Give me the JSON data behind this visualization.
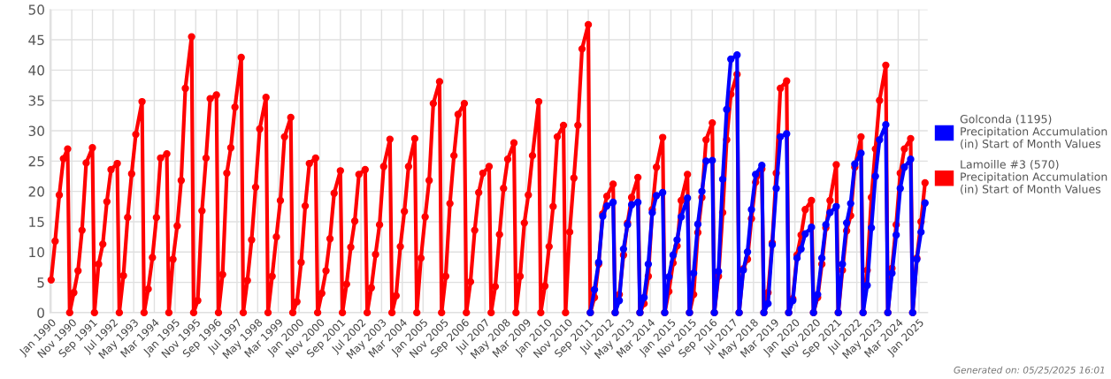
{
  "chart_data": {
    "type": "line",
    "xlim": [
      "1989-12-15",
      "2025-05-10"
    ],
    "xticks": [
      {
        "value": "1990-01",
        "label": "Jan 1990"
      },
      {
        "value": "1990-11",
        "label": "Nov 1990"
      },
      {
        "value": "1991-09",
        "label": "Sep 1991"
      },
      {
        "value": "1992-07",
        "label": "Jul 1992"
      },
      {
        "value": "1993-05",
        "label": "May 1993"
      },
      {
        "value": "1994-03",
        "label": "Mar 1994"
      },
      {
        "value": "1995-01",
        "label": "Jan 1995"
      },
      {
        "value": "1995-11",
        "label": "Nov 1995"
      },
      {
        "value": "1996-09",
        "label": "Sep 1996"
      },
      {
        "value": "1997-07",
        "label": "Jul 1997"
      },
      {
        "value": "1998-05",
        "label": "May 1998"
      },
      {
        "value": "1999-03",
        "label": "Mar 1999"
      },
      {
        "value": "2000-01",
        "label": "Jan 2000"
      },
      {
        "value": "2000-11",
        "label": "Nov 2000"
      },
      {
        "value": "2001-09",
        "label": "Sep 2001"
      },
      {
        "value": "2002-07",
        "label": "Jul 2002"
      },
      {
        "value": "2003-05",
        "label": "May 2003"
      },
      {
        "value": "2004-03",
        "label": "Mar 2004"
      },
      {
        "value": "2005-01",
        "label": "Jan 2005"
      },
      {
        "value": "2005-11",
        "label": "Nov 2005"
      },
      {
        "value": "2006-09",
        "label": "Sep 2006"
      },
      {
        "value": "2007-07",
        "label": "Jul 2007"
      },
      {
        "value": "2008-05",
        "label": "May 2008"
      },
      {
        "value": "2009-03",
        "label": "Mar 2009"
      },
      {
        "value": "2010-01",
        "label": "Jan 2010"
      },
      {
        "value": "2010-11",
        "label": "Nov 2010"
      },
      {
        "value": "2011-09",
        "label": "Sep 2011"
      },
      {
        "value": "2012-07",
        "label": "Jul 2012"
      },
      {
        "value": "2013-05",
        "label": "May 2013"
      },
      {
        "value": "2014-03",
        "label": "Mar 2014"
      },
      {
        "value": "2015-01",
        "label": "Jan 2015"
      },
      {
        "value": "2015-11",
        "label": "Nov 2015"
      },
      {
        "value": "2016-09",
        "label": "Sep 2016"
      },
      {
        "value": "2017-07",
        "label": "Jul 2017"
      },
      {
        "value": "2018-05",
        "label": "May 2018"
      },
      {
        "value": "2019-03",
        "label": "Mar 2019"
      },
      {
        "value": "2020-01",
        "label": "Jan 2020"
      },
      {
        "value": "2020-11",
        "label": "Nov 2020"
      },
      {
        "value": "2021-09",
        "label": "Sep 2021"
      },
      {
        "value": "2022-07",
        "label": "Jul 2022"
      },
      {
        "value": "2023-05",
        "label": "May 2023"
      },
      {
        "value": "2024-03",
        "label": "Mar 2024"
      },
      {
        "value": "2025-01",
        "label": "Jan 2025"
      }
    ],
    "ylim": [
      0,
      50
    ],
    "yticks": [
      0,
      5,
      10,
      15,
      20,
      25,
      30,
      35,
      40,
      45,
      50
    ],
    "grid": true,
    "legend": "right",
    "marker": "circle",
    "line_style": "solid",
    "annotations": [
      "Generated on: 05/25/2025 16:01"
    ],
    "series": [
      {
        "name": "Golconda (1195)\nPrecipitation Accumulation\n(in) Start of Month Values",
        "color": "#0000ff",
        "x": [
          "2011-10",
          "2011-12",
          "2012-02",
          "2012-04",
          "2012-06",
          "2012-09",
          "2012-10",
          "2012-12",
          "2013-02",
          "2013-04",
          "2013-06",
          "2013-09",
          "2013-10",
          "2013-12",
          "2014-02",
          "2014-04",
          "2014-06",
          "2014-09",
          "2014-10",
          "2014-12",
          "2015-02",
          "2015-04",
          "2015-06",
          "2015-09",
          "2015-10",
          "2015-12",
          "2016-02",
          "2016-04",
          "2016-06",
          "2016-09",
          "2016-10",
          "2016-12",
          "2017-02",
          "2017-04",
          "2017-06",
          "2017-09",
          "2017-10",
          "2017-12",
          "2018-02",
          "2018-04",
          "2018-06",
          "2018-09",
          "2018-10",
          "2018-12",
          "2019-02",
          "2019-04",
          "2019-06",
          "2019-09",
          "2019-10",
          "2019-12",
          "2020-02",
          "2020-04",
          "2020-06",
          "2020-09",
          "2020-10",
          "2020-12",
          "2021-02",
          "2021-04",
          "2021-06",
          "2021-09",
          "2021-10",
          "2021-12",
          "2022-02",
          "2022-04",
          "2022-06",
          "2022-09",
          "2022-10",
          "2022-12",
          "2023-02",
          "2023-04",
          "2023-06",
          "2023-09",
          "2023-10",
          "2023-12",
          "2024-02",
          "2024-04",
          "2024-06",
          "2024-09",
          "2024-10",
          "2024-12",
          "2025-02",
          "2025-04"
        ],
        "values": [
          0,
          3.8,
          8.3,
          15.9,
          17.6,
          18.2,
          0,
          2.0,
          10.5,
          14.5,
          17.8,
          18.2,
          0,
          2.5,
          8.0,
          16.5,
          19.3,
          19.8,
          0,
          5.9,
          9.5,
          12.0,
          15.8,
          18.9,
          0,
          6.5,
          14.6,
          20.0,
          25.0,
          25.1,
          0,
          6.8,
          22.0,
          33.5,
          41.8,
          42.5,
          0,
          7.0,
          10.0,
          17.0,
          22.8,
          24.3,
          0,
          1.5,
          11.2,
          20.5,
          29.0,
          29.5,
          0,
          2.0,
          9.0,
          10.5,
          13.0,
          14.1,
          0,
          3.0,
          9.0,
          14.5,
          16.5,
          17.5,
          0,
          8.0,
          14.8,
          18.0,
          24.5,
          26.3,
          0,
          4.5,
          14.0,
          22.5,
          28.5,
          31.0,
          0,
          6.5,
          12.8,
          20.5,
          24.0,
          25.3,
          0,
          8.8,
          13.3,
          18.1
        ]
      },
      {
        "name": "Lamoille #3 (570)\nPrecipitation Accumulation\n(in) Start of Month Values",
        "color": "#ff0000",
        "x": [
          "1990-01",
          "1990-03",
          "1990-05",
          "1990-07",
          "1990-09",
          "1990-10",
          "1990-12",
          "1991-02",
          "1991-04",
          "1991-06",
          "1991-09",
          "1991-10",
          "1991-12",
          "1992-02",
          "1992-04",
          "1992-06",
          "1992-09",
          "1992-10",
          "1992-12",
          "1993-02",
          "1993-04",
          "1993-06",
          "1993-09",
          "1993-10",
          "1993-12",
          "1994-02",
          "1994-04",
          "1994-06",
          "1994-09",
          "1994-10",
          "1994-12",
          "1995-02",
          "1995-04",
          "1995-06",
          "1995-09",
          "1995-10",
          "1995-12",
          "1996-02",
          "1996-04",
          "1996-06",
          "1996-09",
          "1996-10",
          "1996-12",
          "1997-02",
          "1997-04",
          "1997-06",
          "1997-09",
          "1997-10",
          "1997-12",
          "1998-02",
          "1998-04",
          "1998-06",
          "1998-09",
          "1998-10",
          "1998-12",
          "1999-02",
          "1999-04",
          "1999-06",
          "1999-09",
          "1999-10",
          "1999-12",
          "2000-02",
          "2000-04",
          "2000-06",
          "2000-09",
          "2000-10",
          "2000-12",
          "2001-02",
          "2001-04",
          "2001-06",
          "2001-09",
          "2001-10",
          "2001-12",
          "2002-02",
          "2002-04",
          "2002-06",
          "2002-09",
          "2002-10",
          "2002-12",
          "2003-02",
          "2003-04",
          "2003-06",
          "2003-09",
          "2003-10",
          "2003-12",
          "2004-02",
          "2004-04",
          "2004-06",
          "2004-09",
          "2004-10",
          "2004-12",
          "2005-02",
          "2005-04",
          "2005-06",
          "2005-09",
          "2005-10",
          "2005-12",
          "2006-02",
          "2006-04",
          "2006-06",
          "2006-09",
          "2006-10",
          "2006-12",
          "2007-02",
          "2007-04",
          "2007-06",
          "2007-09",
          "2007-10",
          "2007-12",
          "2008-02",
          "2008-04",
          "2008-06",
          "2008-09",
          "2008-10",
          "2008-12",
          "2009-02",
          "2009-04",
          "2009-06",
          "2009-09",
          "2009-10",
          "2009-12",
          "2010-02",
          "2010-04",
          "2010-06",
          "2010-09",
          "2010-10",
          "2010-12",
          "2011-02",
          "2011-04",
          "2011-06",
          "2011-09",
          "2011-10",
          "2011-12",
          "2012-02",
          "2012-04",
          "2012-06",
          "2012-09",
          "2012-10",
          "2012-12",
          "2013-02",
          "2013-04",
          "2013-06",
          "2013-09",
          "2013-10",
          "2013-12",
          "2014-02",
          "2014-04",
          "2014-06",
          "2014-09",
          "2014-10",
          "2014-12",
          "2015-02",
          "2015-04",
          "2015-06",
          "2015-09",
          "2015-10",
          "2015-12",
          "2016-02",
          "2016-04",
          "2016-06",
          "2016-09",
          "2016-10",
          "2016-12",
          "2017-02",
          "2017-04",
          "2017-06",
          "2017-09",
          "2017-10",
          "2017-12",
          "2018-02",
          "2018-04",
          "2018-06",
          "2018-09",
          "2018-10",
          "2018-12",
          "2019-02",
          "2019-04",
          "2019-06",
          "2019-09",
          "2019-10",
          "2019-12",
          "2020-02",
          "2020-04",
          "2020-06",
          "2020-09",
          "2020-10",
          "2020-12",
          "2021-02",
          "2021-04",
          "2021-06",
          "2021-09",
          "2021-10",
          "2021-12",
          "2022-02",
          "2022-04",
          "2022-06",
          "2022-09",
          "2022-10",
          "2022-12",
          "2023-02",
          "2023-04",
          "2023-06",
          "2023-09",
          "2023-10",
          "2023-12",
          "2024-02",
          "2024-04",
          "2024-06",
          "2024-09",
          "2024-10",
          "2024-12",
          "2025-02",
          "2025-04"
        ],
        "values": [
          5.4,
          11.8,
          19.4,
          25.4,
          27.0,
          0,
          3.3,
          6.9,
          13.6,
          24.7,
          27.2,
          0,
          8.0,
          11.3,
          18.3,
          23.6,
          24.6,
          0,
          6.1,
          15.7,
          22.9,
          29.4,
          34.8,
          0,
          3.9,
          9.1,
          15.7,
          25.5,
          26.2,
          0,
          8.8,
          14.3,
          21.8,
          37.0,
          45.5,
          0,
          2.0,
          16.8,
          25.5,
          35.3,
          35.9,
          0,
          6.3,
          23.0,
          27.2,
          33.9,
          42.1,
          0,
          5.3,
          12.0,
          20.7,
          30.3,
          35.5,
          0,
          6.0,
          12.5,
          18.5,
          29.0,
          32.2,
          0,
          1.8,
          8.3,
          17.6,
          24.6,
          25.5,
          0,
          3.2,
          6.9,
          12.2,
          19.7,
          23.4,
          0,
          4.7,
          10.8,
          15.1,
          22.8,
          23.6,
          0,
          4.1,
          9.6,
          14.5,
          24.1,
          28.6,
          0,
          2.8,
          10.9,
          16.7,
          24.1,
          28.7,
          0,
          9.0,
          15.8,
          21.8,
          34.5,
          38.1,
          0,
          6.0,
          18.0,
          25.9,
          32.7,
          34.5,
          0,
          5.1,
          13.6,
          19.8,
          23.0,
          24.1,
          0,
          4.3,
          12.9,
          20.5,
          25.3,
          28.0,
          0,
          6.0,
          14.8,
          19.4,
          25.9,
          34.8,
          0,
          4.4,
          10.9,
          17.5,
          29.0,
          30.9,
          0,
          13.3,
          22.2,
          30.9,
          43.5,
          47.5,
          0,
          2.5,
          8.0,
          16.3,
          19.2,
          21.2,
          0,
          3.0,
          9.5,
          14.8,
          19.0,
          22.3,
          0,
          1.5,
          6.0,
          17.0,
          24.0,
          28.9,
          0,
          3.5,
          8.2,
          11.0,
          18.5,
          22.8,
          0,
          3.0,
          13.2,
          19.0,
          28.5,
          31.3,
          0,
          6.0,
          16.5,
          28.5,
          36.0,
          39.3,
          0,
          7.2,
          8.8,
          15.5,
          21.5,
          23.7,
          0,
          3.3,
          11.5,
          23.0,
          37.0,
          38.2,
          0,
          2.3,
          9.5,
          12.8,
          17.0,
          18.5,
          0,
          2.5,
          8.0,
          14.0,
          18.5,
          24.4,
          0,
          7.0,
          13.5,
          16.0,
          24.0,
          29.0,
          0,
          7.0,
          19.0,
          27.0,
          35.0,
          40.8,
          0,
          7.3,
          14.5,
          23.0,
          27.0,
          28.7,
          0,
          9.0,
          15.0,
          21.4
        ]
      }
    ]
  }
}
